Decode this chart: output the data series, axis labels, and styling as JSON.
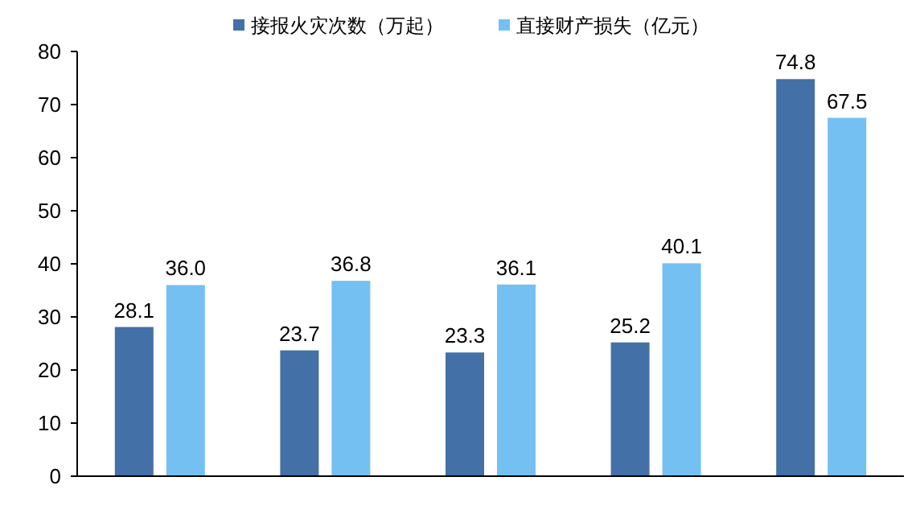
{
  "chart_data": {
    "type": "bar",
    "categories": [
      null,
      null,
      null,
      null,
      null
    ],
    "series": [
      {
        "name": "接报火灾次数（万起）",
        "color": "#4470a8",
        "values": [
          28.1,
          23.7,
          23.3,
          25.2,
          74.8
        ],
        "value_labels": [
          "28.1",
          "23.7",
          "23.3",
          "25.2",
          "74.8"
        ]
      },
      {
        "name": "直接财产损失（亿元）",
        "color": "#74c0f2",
        "values": [
          36.0,
          36.8,
          36.1,
          40.1,
          67.5
        ],
        "value_labels": [
          "36.0",
          "36.8",
          "36.1",
          "40.1",
          "67.5"
        ]
      }
    ],
    "ylim": [
      0,
      80
    ],
    "yticks": [
      0,
      10,
      20,
      30,
      40,
      50,
      60,
      70,
      80
    ],
    "legend": "top",
    "grid": false
  }
}
